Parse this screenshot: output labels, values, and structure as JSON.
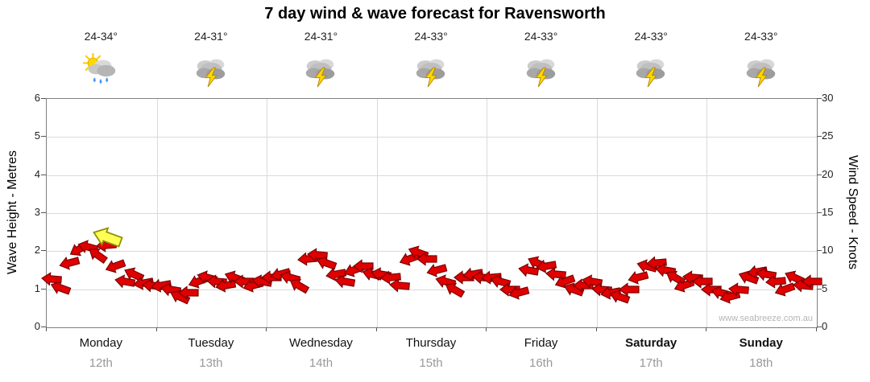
{
  "chart_data": {
    "type": "scatter",
    "marker": "wind-arrow",
    "title": "7 day wind & wave forecast for Ravensworth",
    "ylabel_left": "Wave Height - Metres",
    "ylabel_right": "Wind Speed - Knots",
    "left_range": [
      0,
      6
    ],
    "right_range": [
      0,
      30
    ],
    "left_ticks": [
      0,
      1,
      2,
      3,
      4,
      5,
      6
    ],
    "right_ticks": [
      0,
      5,
      10,
      15,
      20,
      25,
      30
    ],
    "points_per_day": 12,
    "watermark": "www.seabreeze.com.au",
    "colors": {
      "arrow": "#e00000",
      "arrow_outline": "#7c0000",
      "highlight": "#ffff55",
      "highlight_outline": "#8f8f00",
      "grid": "#dadada",
      "date_text": "#999999"
    },
    "days": [
      {
        "name": "Monday",
        "date": "12th",
        "temp": "24-34°",
        "icon": "sun-cloud-rain",
        "weekend": false,
        "wind": [
          6.3,
          5.2,
          8.5,
          10.2,
          10.6,
          9.5,
          10.8,
          8.0,
          6.0,
          7.0,
          5.8,
          5.5
        ],
        "dirs": [
          185,
          200,
          165,
          150,
          195,
          215,
          175,
          160,
          190,
          205,
          170,
          185
        ]
      },
      {
        "name": "Tuesday",
        "date": "13th",
        "temp": "24-31°",
        "icon": "storm",
        "weekend": false,
        "wind": [
          5.5,
          5.0,
          4.0,
          4.5,
          6.0,
          6.5,
          6.0,
          5.5,
          6.5,
          6.0,
          5.5,
          6.0
        ],
        "dirs": [
          170,
          190,
          205,
          180,
          160,
          195,
          185,
          170,
          200,
          180,
          165,
          190
        ]
      },
      {
        "name": "Wednesday",
        "date": "14th",
        "temp": "24-31°",
        "icon": "storm",
        "weekend": false,
        "wind": [
          6.5,
          7.0,
          6.5,
          5.5,
          9.0,
          9.5,
          8.5,
          7.0,
          6.0,
          7.5,
          8.0,
          7.0
        ],
        "dirs": [
          180,
          165,
          195,
          210,
          175,
          185,
          200,
          170,
          190,
          160,
          180,
          195
        ]
      },
      {
        "name": "Thursday",
        "date": "15th",
        "temp": "24-33°",
        "icon": "storm",
        "weekend": false,
        "wind": [
          7.0,
          6.5,
          5.5,
          9.0,
          9.8,
          9.0,
          7.5,
          6.0,
          5.0,
          6.5,
          7.0,
          6.5
        ],
        "dirs": [
          190,
          175,
          185,
          160,
          200,
          180,
          165,
          195,
          210,
          180,
          170,
          185
        ]
      },
      {
        "name": "Friday",
        "date": "16th",
        "temp": "24-33°",
        "icon": "storm",
        "weekend": false,
        "wind": [
          6.5,
          6.0,
          5.0,
          4.5,
          7.5,
          8.5,
          8.0,
          7.0,
          6.0,
          5.0,
          5.5,
          6.0
        ],
        "dirs": [
          175,
          195,
          180,
          165,
          190,
          205,
          170,
          185,
          160,
          200,
          180,
          190
        ]
      },
      {
        "name": "Saturday",
        "date": "17th",
        "temp": "24-33°",
        "icon": "storm",
        "weekend": true,
        "wind": [
          5.0,
          4.5,
          4.0,
          5.0,
          6.5,
          8.0,
          8.5,
          7.5,
          6.5,
          5.5,
          6.5,
          6.0
        ],
        "dirs": [
          185,
          170,
          200,
          180,
          165,
          195,
          175,
          190,
          210,
          160,
          185,
          180
        ]
      },
      {
        "name": "Sunday",
        "date": "18th",
        "temp": "24-33°",
        "icon": "storm",
        "weekend": true,
        "wind": [
          5.0,
          4.5,
          4.0,
          5.0,
          6.5,
          7.3,
          7.0,
          6.0,
          5.0,
          6.5,
          5.5,
          6.0
        ],
        "dirs": [
          180,
          195,
          165,
          185,
          200,
          170,
          190,
          175,
          160,
          205,
          185,
          180
        ]
      }
    ],
    "highlight": {
      "day": 0,
      "frac": 0.55,
      "knots": 11.8,
      "dir": 200
    }
  }
}
